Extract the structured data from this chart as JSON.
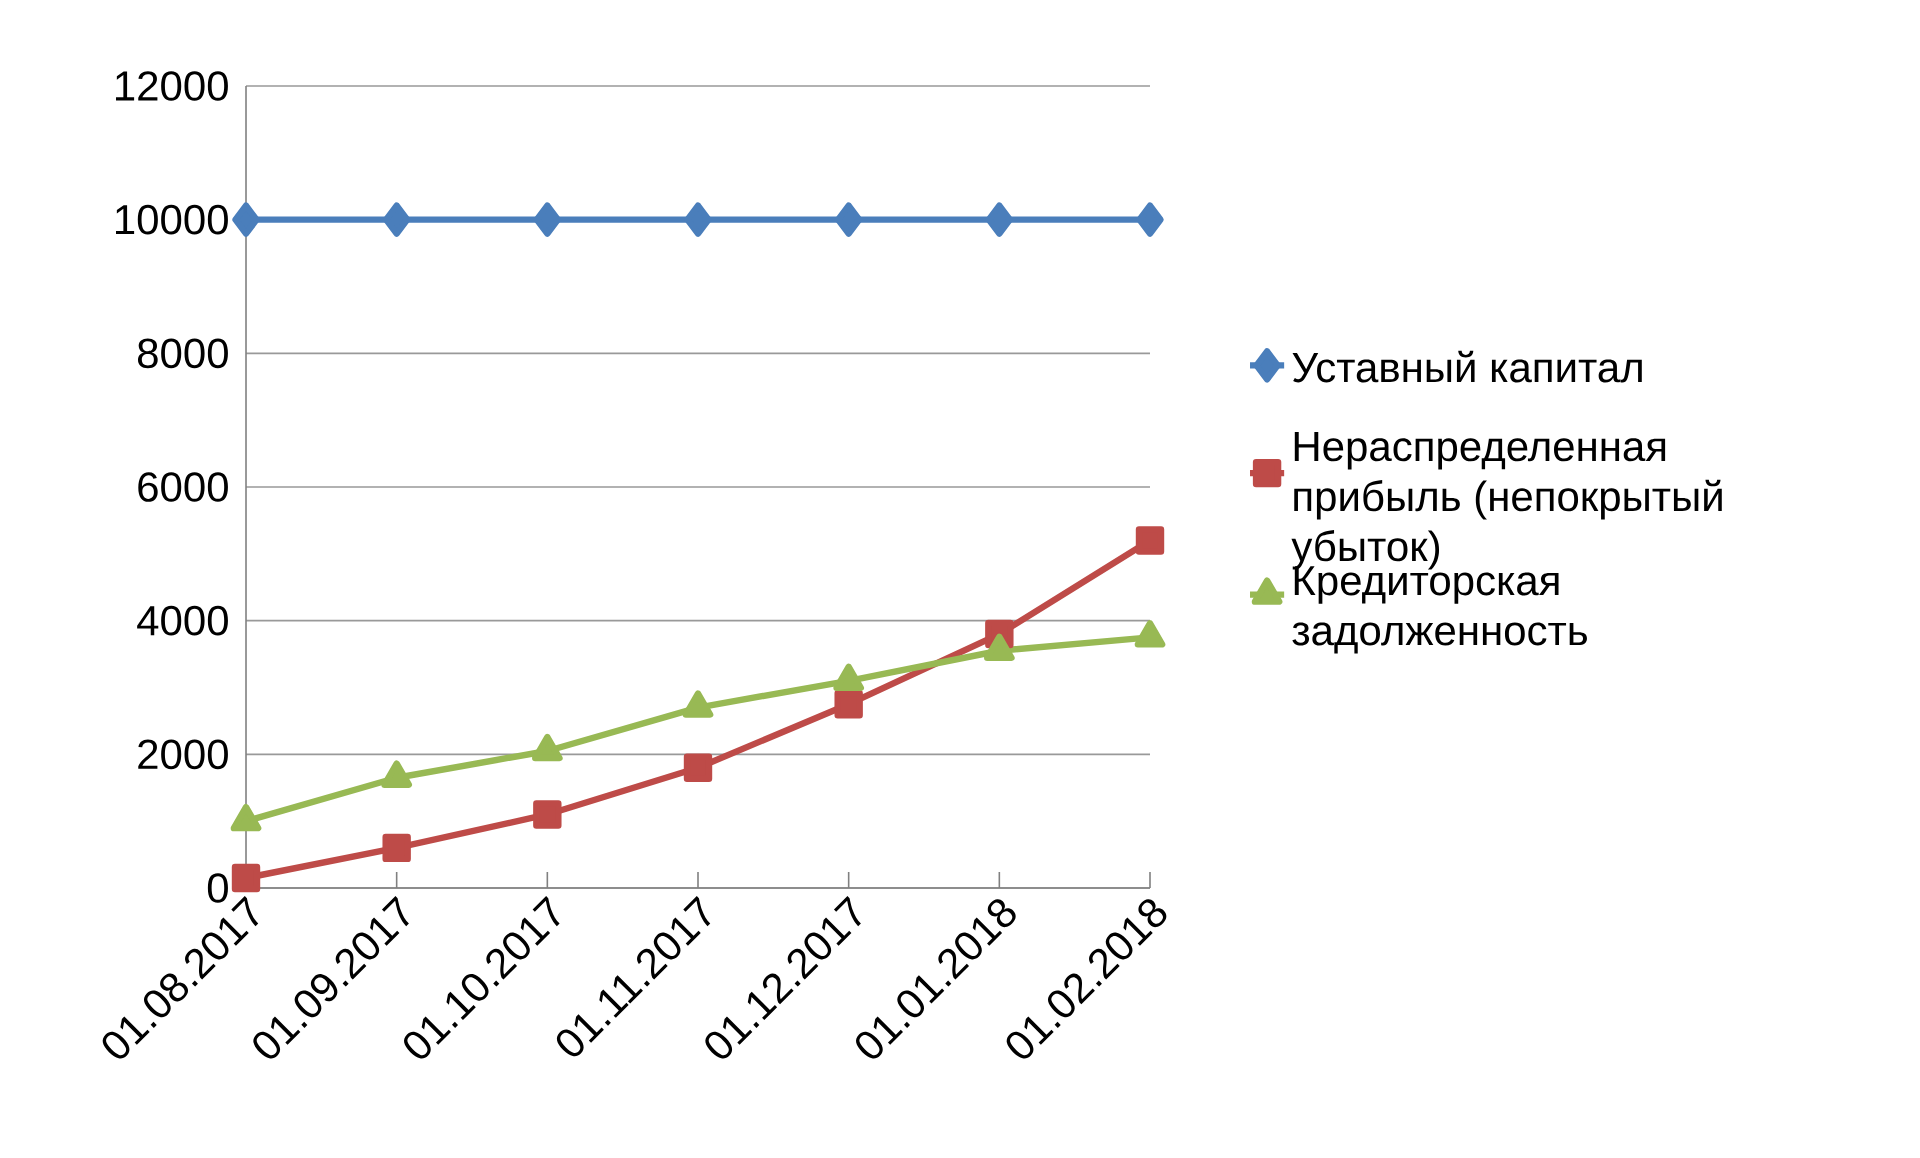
{
  "chart_data": {
    "type": "line",
    "categories": [
      "01.08.2017",
      "01.09.2017",
      "01.10.2017",
      "01.11.2017",
      "01.12.2017",
      "01.01.2018",
      "01.02.2018"
    ],
    "series": [
      {
        "name": "Уставный капитал",
        "color": "#4a7ebb",
        "marker": "diamond",
        "values": [
          10000,
          10000,
          10000,
          10000,
          10000,
          10000,
          10000
        ]
      },
      {
        "name": "Нераспределенная прибыль (непокрытый убыток)",
        "color": "#be4b48",
        "marker": "square",
        "values": [
          150,
          600,
          1100,
          1800,
          2750,
          3800,
          5200
        ]
      },
      {
        "name": "Кредиторская задолженность",
        "color": "#98b954",
        "marker": "triangle",
        "values": [
          1000,
          1650,
          2050,
          2700,
          3100,
          3550,
          3750
        ]
      }
    ],
    "ylim": [
      0,
      12000
    ],
    "yticks": [
      0,
      2000,
      4000,
      6000,
      8000,
      10000,
      12000
    ],
    "grid": "y",
    "legend": "right",
    "line_style": "solid"
  }
}
